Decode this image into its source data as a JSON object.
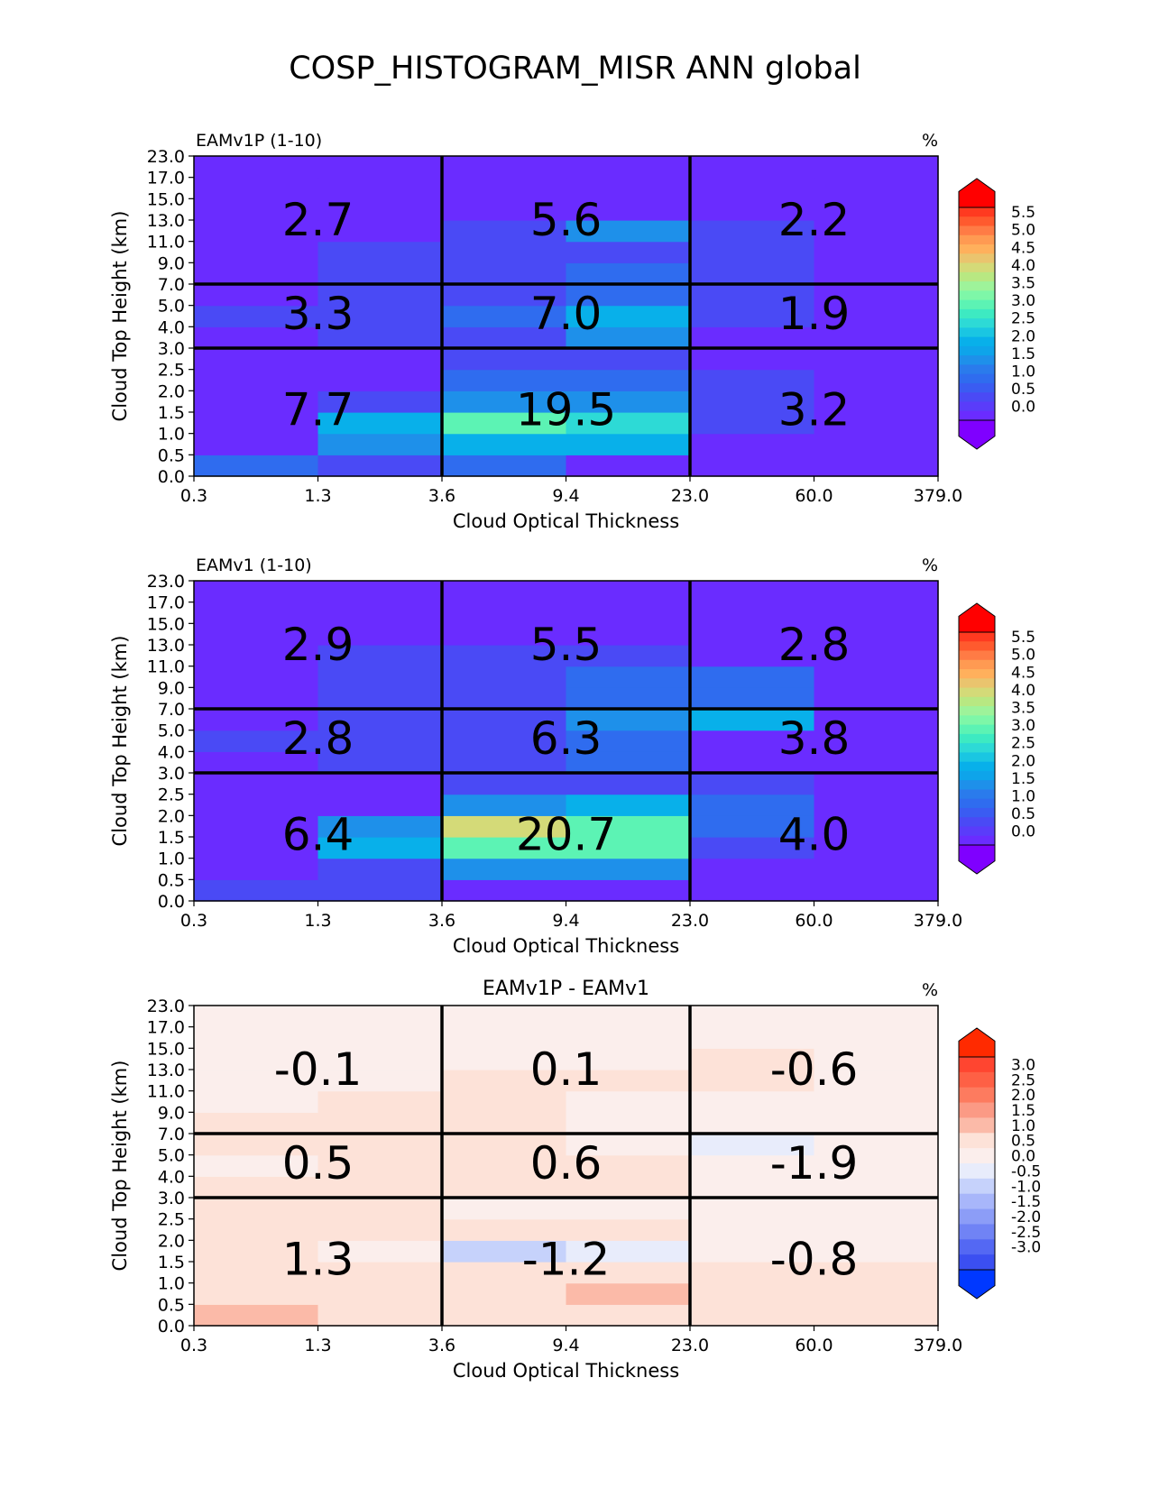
{
  "figure_title": "COSP_HISTOGRAM_MISR ANN global",
  "chart_data": [
    {
      "type": "heatmap",
      "title": "EAMv1P (1-10)",
      "units": "%",
      "xlabel": "Cloud Optical Thickness",
      "ylabel": "Cloud Top Height (km)",
      "x_tick_labels": [
        "0.3",
        "1.3",
        "3.6",
        "9.4",
        "23.0",
        "60.0",
        "379.0"
      ],
      "y_tick_labels": [
        "0.0",
        "0.5",
        "1.0",
        "1.5",
        "2.0",
        "2.5",
        "3.0",
        "4.0",
        "5.0",
        "7.0",
        "9.0",
        "11.0",
        "13.0",
        "15.0",
        "17.0",
        "23.0"
      ],
      "cell_values_rows_bottom_to_top": [
        [
          1.0,
          0.5,
          1.0,
          0.0,
          0.0,
          0.0
        ],
        [
          0.0,
          1.5,
          2.0,
          2.0,
          0.0,
          0.0
        ],
        [
          0.0,
          2.0,
          3.0,
          2.5,
          0.5,
          0.0
        ],
        [
          0.0,
          0.5,
          1.5,
          1.5,
          0.5,
          0.0
        ],
        [
          0.0,
          0.0,
          1.0,
          1.0,
          0.5,
          0.0
        ],
        [
          0.0,
          0.0,
          0.5,
          0.5,
          0.0,
          0.0
        ],
        [
          0.0,
          0.5,
          0.5,
          1.5,
          0.0,
          0.0
        ],
        [
          0.5,
          0.5,
          1.0,
          2.0,
          0.5,
          0.0
        ],
        [
          0.0,
          0.5,
          0.5,
          1.0,
          0.5,
          0.0
        ],
        [
          0.0,
          0.5,
          0.5,
          1.0,
          0.5,
          0.0
        ],
        [
          0.0,
          0.5,
          0.5,
          0.5,
          0.5,
          0.0
        ],
        [
          0.0,
          0.0,
          0.5,
          1.5,
          0.5,
          0.0
        ],
        [
          0.0,
          0.0,
          0.0,
          0.0,
          0.0,
          0.0
        ],
        [
          0.0,
          0.0,
          0.0,
          0.0,
          0.0,
          0.0
        ],
        [
          0.0,
          0.0,
          0.0,
          0.0,
          0.0,
          0.0
        ]
      ],
      "group_sums": [
        {
          "label": "2.7",
          "x": 1.3,
          "y": 14.0
        },
        {
          "label": "5.6",
          "x": 9.4,
          "y": 14.0
        },
        {
          "label": "2.2",
          "x": 60.0,
          "y": 14.0
        },
        {
          "label": "3.3",
          "x": 1.3,
          "y": 5.0
        },
        {
          "label": "7.0",
          "x": 9.4,
          "y": 5.0
        },
        {
          "label": "1.9",
          "x": 60.0,
          "y": 5.0
        },
        {
          "label": "7.7",
          "x": 1.3,
          "y": 1.5
        },
        {
          "label": "19.5",
          "x": 9.4,
          "y": 1.5
        },
        {
          "label": "3.2",
          "x": 60.0,
          "y": 1.5
        }
      ],
      "colorbar": {
        "ticks": [
          "5.5",
          "5.0",
          "4.5",
          "4.0",
          "3.5",
          "3.0",
          "2.5",
          "2.0",
          "1.5",
          "1.0",
          "0.5",
          "0.0"
        ],
        "levels": [
          5.75,
          5.5,
          5.25,
          5.0,
          4.75,
          4.5,
          4.25,
          4.0,
          3.75,
          3.5,
          3.25,
          3.0,
          2.75,
          2.5,
          2.25,
          2.0,
          1.75,
          1.5,
          1.25,
          1.0,
          0.75,
          0.5,
          0.25,
          0.0
        ],
        "colors": [
          "#ff0000",
          "#ff3a20",
          "#ff5a2e",
          "#ff7b45",
          "#ff9a52",
          "#ffb05c",
          "#eac46e",
          "#d4da78",
          "#b8e882",
          "#9ef39a",
          "#7ef7a8",
          "#5cf3b4",
          "#3deac2",
          "#2ddad6",
          "#1ac6e2",
          "#08b0ea",
          "#0ea4ea",
          "#1e90ea",
          "#2a7bec",
          "#2f6cef",
          "#3a5cf2",
          "#4a4af5",
          "#5a3cfa",
          "#6a2cff",
          "#7f00ff"
        ]
      }
    },
    {
      "type": "heatmap",
      "title": "EAMv1 (1-10)",
      "units": "%",
      "xlabel": "Cloud Optical Thickness",
      "ylabel": "Cloud Top Height (km)",
      "x_tick_labels": [
        "0.3",
        "1.3",
        "3.6",
        "9.4",
        "23.0",
        "60.0",
        "379.0"
      ],
      "y_tick_labels": [
        "0.0",
        "0.5",
        "1.0",
        "1.5",
        "2.0",
        "2.5",
        "3.0",
        "4.0",
        "5.0",
        "7.0",
        "9.0",
        "11.0",
        "13.0",
        "15.0",
        "17.0",
        "23.0"
      ],
      "cell_values_rows_bottom_to_top": [
        [
          0.5,
          0.5,
          0.0,
          0.0,
          0.0,
          0.0
        ],
        [
          0.0,
          0.5,
          1.5,
          1.5,
          0.0,
          0.0
        ],
        [
          0.0,
          2.0,
          3.0,
          3.0,
          0.5,
          0.0
        ],
        [
          0.0,
          1.5,
          4.0,
          3.0,
          1.0,
          0.0
        ],
        [
          0.0,
          0.0,
          1.5,
          2.0,
          1.0,
          0.0
        ],
        [
          0.0,
          0.0,
          0.5,
          0.5,
          0.5,
          0.0
        ],
        [
          0.0,
          0.5,
          0.5,
          1.0,
          0.0,
          0.0
        ],
        [
          0.5,
          0.5,
          0.5,
          1.0,
          0.0,
          0.0
        ],
        [
          0.0,
          0.5,
          0.5,
          1.5,
          2.0,
          0.0
        ],
        [
          0.0,
          0.5,
          0.5,
          1.0,
          1.0,
          0.0
        ],
        [
          0.0,
          0.5,
          0.5,
          1.0,
          1.0,
          0.0
        ],
        [
          0.0,
          0.5,
          0.5,
          0.5,
          0.0,
          0.0
        ],
        [
          0.0,
          0.0,
          0.0,
          0.0,
          0.0,
          0.0
        ],
        [
          0.0,
          0.0,
          0.0,
          0.0,
          0.0,
          0.0
        ],
        [
          0.0,
          0.0,
          0.0,
          0.0,
          0.0,
          0.0
        ]
      ],
      "group_sums": [
        {
          "label": "2.9",
          "x": 1.3,
          "y": 14.0
        },
        {
          "label": "5.5",
          "x": 9.4,
          "y": 14.0
        },
        {
          "label": "2.8",
          "x": 60.0,
          "y": 14.0
        },
        {
          "label": "2.8",
          "x": 1.3,
          "y": 5.0
        },
        {
          "label": "6.3",
          "x": 9.4,
          "y": 5.0
        },
        {
          "label": "3.8",
          "x": 60.0,
          "y": 5.0
        },
        {
          "label": "6.4",
          "x": 1.3,
          "y": 1.5
        },
        {
          "label": "20.7",
          "x": 9.4,
          "y": 1.5
        },
        {
          "label": "4.0",
          "x": 60.0,
          "y": 1.5
        }
      ],
      "colorbar": {
        "ticks": [
          "5.5",
          "5.0",
          "4.5",
          "4.0",
          "3.5",
          "3.0",
          "2.5",
          "2.0",
          "1.5",
          "1.0",
          "0.5",
          "0.0"
        ],
        "levels": [
          5.75,
          5.5,
          5.25,
          5.0,
          4.75,
          4.5,
          4.25,
          4.0,
          3.75,
          3.5,
          3.25,
          3.0,
          2.75,
          2.5,
          2.25,
          2.0,
          1.75,
          1.5,
          1.25,
          1.0,
          0.75,
          0.5,
          0.25,
          0.0
        ],
        "colors": [
          "#ff0000",
          "#ff3a20",
          "#ff5a2e",
          "#ff7b45",
          "#ff9a52",
          "#ffb05c",
          "#eac46e",
          "#d4da78",
          "#b8e882",
          "#9ef39a",
          "#7ef7a8",
          "#5cf3b4",
          "#3deac2",
          "#2ddad6",
          "#1ac6e2",
          "#08b0ea",
          "#0ea4ea",
          "#1e90ea",
          "#2a7bec",
          "#2f6cef",
          "#3a5cf2",
          "#4a4af5",
          "#5a3cfa",
          "#6a2cff",
          "#7f00ff"
        ]
      }
    },
    {
      "type": "heatmap",
      "title": "EAMv1P - EAMv1",
      "units": "%",
      "xlabel": "Cloud Optical Thickness",
      "ylabel": "Cloud Top Height (km)",
      "x_tick_labels": [
        "0.3",
        "1.3",
        "3.6",
        "9.4",
        "23.0",
        "60.0",
        "379.0"
      ],
      "y_tick_labels": [
        "0.0",
        "0.5",
        "1.0",
        "1.5",
        "2.0",
        "2.5",
        "3.0",
        "4.0",
        "5.0",
        "7.0",
        "9.0",
        "11.0",
        "13.0",
        "15.0",
        "17.0",
        "23.0"
      ],
      "cell_values_rows_bottom_to_top": [
        [
          0.75,
          0.25,
          0.25,
          0.25,
          0.25,
          0.25
        ],
        [
          0.25,
          0.25,
          0.25,
          0.75,
          0.25,
          0.25
        ],
        [
          0.25,
          0.25,
          0.25,
          0.25,
          0.25,
          0.25
        ],
        [
          0.25,
          -0.25,
          -1.25,
          -0.75,
          -0.25,
          -0.25
        ],
        [
          0.25,
          0.25,
          0.25,
          0.25,
          -0.25,
          -0.25
        ],
        [
          0.25,
          0.25,
          -0.25,
          -0.25,
          -0.25,
          -0.25
        ],
        [
          0.25,
          0.25,
          0.25,
          0.25,
          -0.25,
          -0.25
        ],
        [
          -0.25,
          0.25,
          0.25,
          0.25,
          -0.25,
          -0.25
        ],
        [
          0.25,
          0.25,
          0.25,
          -0.25,
          -0.75,
          -0.25
        ],
        [
          0.25,
          0.25,
          0.25,
          -0.25,
          -0.25,
          -0.25
        ],
        [
          -0.25,
          0.25,
          0.25,
          -0.25,
          -0.25,
          -0.25
        ],
        [
          -0.25,
          -0.25,
          0.25,
          0.25,
          0.25,
          -0.25
        ],
        [
          -0.25,
          -0.25,
          -0.25,
          -0.25,
          0.25,
          -0.25
        ],
        [
          -0.25,
          -0.25,
          -0.25,
          -0.25,
          -0.25,
          -0.25
        ],
        [
          -0.25,
          -0.25,
          -0.25,
          -0.25,
          -0.25,
          -0.25
        ]
      ],
      "group_sums": [
        {
          "label": "-0.1",
          "x": 1.3,
          "y": 14.0
        },
        {
          "label": "0.1",
          "x": 9.4,
          "y": 14.0
        },
        {
          "label": "-0.6",
          "x": 60.0,
          "y": 14.0
        },
        {
          "label": "0.5",
          "x": 1.3,
          "y": 5.0
        },
        {
          "label": "0.6",
          "x": 9.4,
          "y": 5.0
        },
        {
          "label": "-1.9",
          "x": 60.0,
          "y": 5.0
        },
        {
          "label": "1.3",
          "x": 1.3,
          "y": 1.5
        },
        {
          "label": "-1.2",
          "x": 9.4,
          "y": 1.5
        },
        {
          "label": "-0.8",
          "x": 60.0,
          "y": 1.5
        }
      ],
      "colorbar": {
        "ticks": [
          "3.0",
          "2.5",
          "2.0",
          "1.5",
          "1.0",
          "0.5",
          "0.0",
          "-0.5",
          "-1.0",
          "-1.5",
          "-2.0",
          "-2.5",
          "-3.0"
        ],
        "levels": [
          3.0,
          2.5,
          2.0,
          1.5,
          1.0,
          0.5,
          0.0,
          -0.5,
          -1.0,
          -1.5,
          -2.0,
          -2.5,
          -3.0
        ],
        "colors": [
          "#ff2a00",
          "#ff4530",
          "#fe6045",
          "#fd7b5f",
          "#fb9a85",
          "#fbbaa8",
          "#fde2d8",
          "#fbeeec",
          "#e8ecfb",
          "#c6d2fb",
          "#a8b6fa",
          "#8c9df7",
          "#7083f5",
          "#5468f3",
          "#3b4ff1",
          "#0038ff"
        ]
      }
    }
  ]
}
